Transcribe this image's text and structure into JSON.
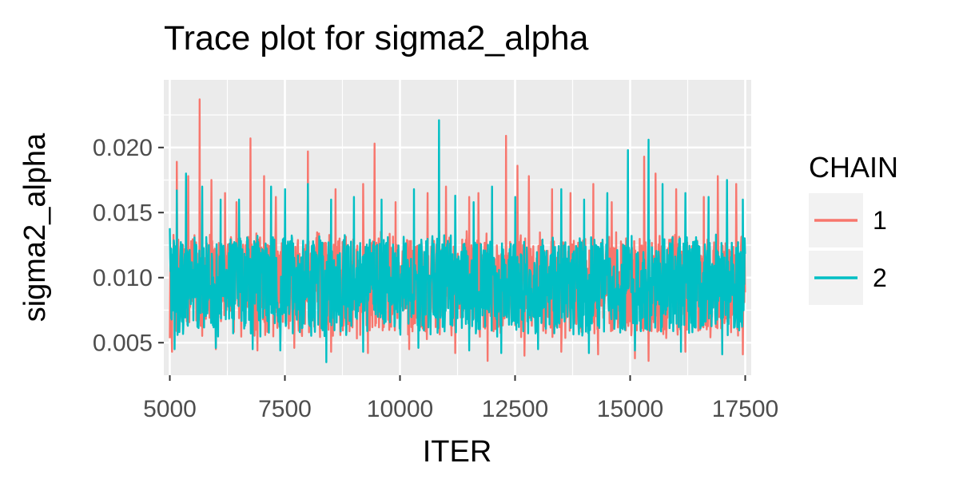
{
  "chart_data": {
    "type": "line",
    "title": "Trace plot for sigma2_alpha",
    "xlabel": "ITER",
    "ylabel": "sigma2_alpha",
    "xlim": [
      4870,
      17630
    ],
    "ylim": [
      0.0025,
      0.0252
    ],
    "x_ticks": [
      5000,
      7500,
      10000,
      12500,
      15000,
      17500
    ],
    "x_tick_labels": [
      "5000",
      "7500",
      "10000",
      "12500",
      "15000",
      "17500"
    ],
    "y_ticks": [
      0.005,
      0.01,
      0.015,
      0.02
    ],
    "y_tick_labels": [
      "0.005",
      "0.010",
      "0.015",
      "0.020"
    ],
    "grid": true,
    "panel_background": "#ebebeb",
    "legend": {
      "title": "CHAIN",
      "position": "right"
    },
    "x_start": 5000,
    "x_end": 17500,
    "series": [
      {
        "name": "1",
        "color": "#f8766d",
        "base_band": [
          0.0055,
          0.0132
        ],
        "peaks": [
          [
            5150,
            0.0189
          ],
          [
            5400,
            0.0178
          ],
          [
            5650,
            0.0237
          ],
          [
            5900,
            0.0175
          ],
          [
            6200,
            0.0165
          ],
          [
            6450,
            0.0158
          ],
          [
            6750,
            0.0207
          ],
          [
            7050,
            0.0178
          ],
          [
            7300,
            0.0162
          ],
          [
            7700,
            0.0165
          ],
          [
            8000,
            0.0197
          ],
          [
            8600,
            0.0168
          ],
          [
            9200,
            0.0172
          ],
          [
            9450,
            0.0203
          ],
          [
            9900,
            0.0158
          ],
          [
            10200,
            0.0178
          ],
          [
            10600,
            0.0165
          ],
          [
            11000,
            0.017
          ],
          [
            11500,
            0.0162
          ],
          [
            11700,
            0.0165
          ],
          [
            12000,
            0.0168
          ],
          [
            12300,
            0.0209
          ],
          [
            12550,
            0.0186
          ],
          [
            12800,
            0.0178
          ],
          [
            13300,
            0.0168
          ],
          [
            13700,
            0.0165
          ],
          [
            14200,
            0.0172
          ],
          [
            14600,
            0.0158
          ],
          [
            15100,
            0.0175
          ],
          [
            15300,
            0.0193
          ],
          [
            15550,
            0.018
          ],
          [
            16000,
            0.0168
          ],
          [
            16600,
            0.0162
          ],
          [
            16900,
            0.0178
          ],
          [
            17300,
            0.0172
          ]
        ],
        "troughs": [
          [
            5050,
            0.0043
          ],
          [
            6000,
            0.0045
          ],
          [
            6900,
            0.0044
          ],
          [
            7700,
            0.0046
          ],
          [
            8500,
            0.0043
          ],
          [
            9300,
            0.0042
          ],
          [
            10200,
            0.0045
          ],
          [
            11200,
            0.0042
          ],
          [
            11900,
            0.0036
          ],
          [
            12700,
            0.004
          ],
          [
            13500,
            0.0043
          ],
          [
            14300,
            0.0041
          ],
          [
            15100,
            0.0038
          ],
          [
            15400,
            0.0036
          ],
          [
            16200,
            0.0043
          ],
          [
            17000,
            0.0042
          ],
          [
            17450,
            0.0041
          ]
        ]
      },
      {
        "name": "2",
        "color": "#00bfc4",
        "base_band": [
          0.0057,
          0.013
        ],
        "peaks": [
          [
            5000,
            0.0138
          ],
          [
            5150,
            0.0167
          ],
          [
            5350,
            0.018
          ],
          [
            5700,
            0.017
          ],
          [
            6100,
            0.016
          ],
          [
            6500,
            0.016
          ],
          [
            6800,
            0.0168
          ],
          [
            7200,
            0.017
          ],
          [
            7500,
            0.0168
          ],
          [
            8000,
            0.0172
          ],
          [
            8500,
            0.016
          ],
          [
            9000,
            0.0162
          ],
          [
            9600,
            0.016
          ],
          [
            10300,
            0.0168
          ],
          [
            10850,
            0.0221
          ],
          [
            11200,
            0.0163
          ],
          [
            11600,
            0.0158
          ],
          [
            12000,
            0.017
          ],
          [
            12500,
            0.0162
          ],
          [
            13000,
            0.0165
          ],
          [
            13500,
            0.0168
          ],
          [
            14000,
            0.016
          ],
          [
            14500,
            0.0165
          ],
          [
            14950,
            0.0198
          ],
          [
            15400,
            0.0206
          ],
          [
            15700,
            0.0172
          ],
          [
            16200,
            0.0165
          ],
          [
            16700,
            0.0162
          ],
          [
            17100,
            0.0175
          ],
          [
            17450,
            0.016
          ]
        ],
        "troughs": [
          [
            5100,
            0.0045
          ],
          [
            6000,
            0.0046
          ],
          [
            6800,
            0.0045
          ],
          [
            7400,
            0.0044
          ],
          [
            8400,
            0.0035
          ],
          [
            9200,
            0.0043
          ],
          [
            10400,
            0.0046
          ],
          [
            11500,
            0.0044
          ],
          [
            12200,
            0.0042
          ],
          [
            13000,
            0.0045
          ],
          [
            14100,
            0.0042
          ],
          [
            15100,
            0.0044
          ],
          [
            16100,
            0.0043
          ],
          [
            17000,
            0.0041
          ]
        ]
      }
    ]
  }
}
